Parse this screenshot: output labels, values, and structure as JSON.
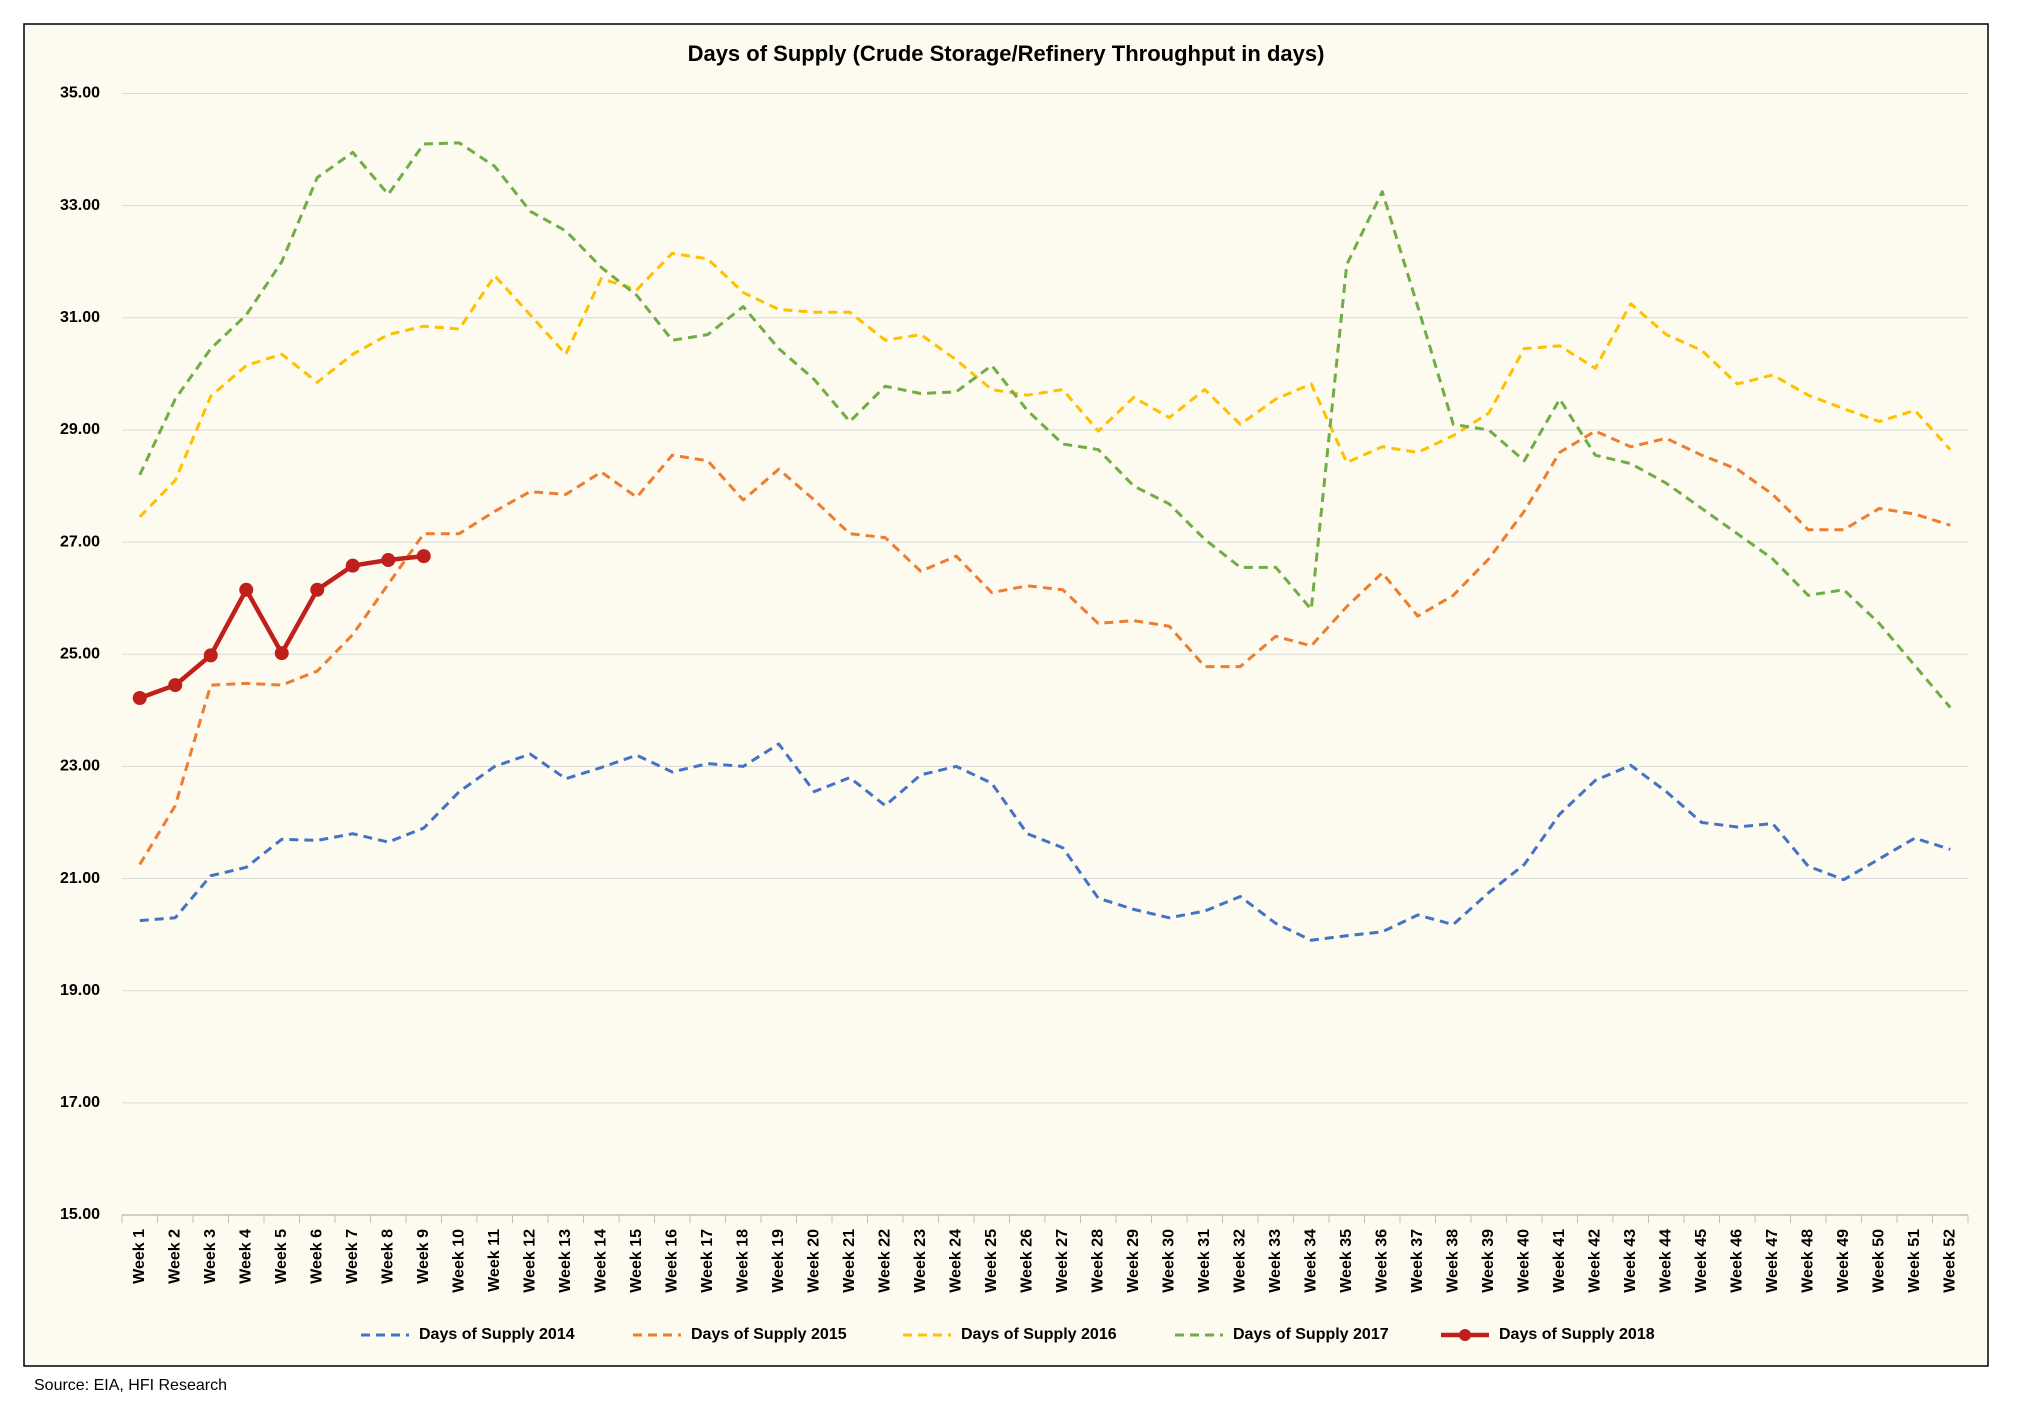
{
  "chart_data": {
    "type": "line",
    "title": "Days of Supply (Crude Storage/Refinery Throughput in days)",
    "source": "Source: EIA, HFI Research",
    "categories": [
      "Week 1",
      "Week 2",
      "Week 3",
      "Week 4",
      "Week 5",
      "Week 6",
      "Week 7",
      "Week 8",
      "Week 9",
      "Week 10",
      "Week 11",
      "Week 12",
      "Week 13",
      "Week 14",
      "Week 15",
      "Week 16",
      "Week 17",
      "Week 18",
      "Week 19",
      "Week 20",
      "Week 21",
      "Week 22",
      "Week 23",
      "Week 24",
      "Week 25",
      "Week 26",
      "Week 27",
      "Week 28",
      "Week 29",
      "Week 30",
      "Week 31",
      "Week 32",
      "Week 33",
      "Week 34",
      "Week 35",
      "Week 36",
      "Week 37",
      "Week 38",
      "Week 39",
      "Week 40",
      "Week 41",
      "Week 42",
      "Week 43",
      "Week 44",
      "Week 45",
      "Week 46",
      "Week 47",
      "Week 48",
      "Week 49",
      "Week 50",
      "Week 51",
      "Week 52"
    ],
    "ylim": [
      15,
      35
    ],
    "yticks": [
      {
        "value": 15,
        "label": "15.00"
      },
      {
        "value": 17,
        "label": "17.00"
      },
      {
        "value": 19,
        "label": "19.00"
      },
      {
        "value": 21,
        "label": "21.00"
      },
      {
        "value": 23,
        "label": "23.00"
      },
      {
        "value": 25,
        "label": "25.00"
      },
      {
        "value": 27,
        "label": "27.00"
      },
      {
        "value": 29,
        "label": "29.00"
      },
      {
        "value": 31,
        "label": "31.00"
      },
      {
        "value": 33,
        "label": "33.00"
      },
      {
        "value": 35,
        "label": "35.00"
      }
    ],
    "grid": true,
    "legend": "bottom",
    "series": [
      {
        "name": "Days of Supply 2014",
        "color": "#4472c4",
        "dashed": true,
        "values": [
          20.25,
          20.3,
          21.05,
          21.2,
          21.7,
          21.68,
          21.8,
          21.65,
          21.9,
          22.55,
          23.0,
          23.22,
          22.78,
          22.98,
          23.2,
          22.9,
          23.05,
          23.0,
          23.4,
          22.55,
          22.8,
          22.3,
          22.85,
          23.0,
          22.7,
          21.8,
          21.55,
          20.65,
          20.45,
          20.3,
          20.42,
          20.68,
          20.2,
          19.9,
          19.98,
          20.05,
          20.35,
          20.18,
          20.75,
          21.25,
          22.15,
          22.75,
          23.02,
          22.55,
          22.0,
          21.92,
          21.98,
          21.22,
          20.98,
          21.35,
          21.72,
          21.52
        ]
      },
      {
        "name": "Days of Supply 2015",
        "color": "#ed7d31",
        "dashed": true,
        "values": [
          21.25,
          22.3,
          24.45,
          24.48,
          24.45,
          24.7,
          25.35,
          26.25,
          27.15,
          27.15,
          27.55,
          27.9,
          27.85,
          28.25,
          27.8,
          28.55,
          28.45,
          27.75,
          28.3,
          27.75,
          27.15,
          27.08,
          26.48,
          26.75,
          26.1,
          26.22,
          26.15,
          25.55,
          25.6,
          25.5,
          24.78,
          24.78,
          25.32,
          25.15,
          25.85,
          26.45,
          25.68,
          26.05,
          26.7,
          27.55,
          28.6,
          28.98,
          28.7,
          28.85,
          28.55,
          28.3,
          27.85,
          27.22,
          27.22,
          27.6,
          27.5,
          27.3
        ]
      },
      {
        "name": "Days of Supply 2016",
        "color": "#ffc000",
        "dashed": true,
        "values": [
          27.45,
          28.1,
          29.6,
          30.15,
          30.35,
          29.85,
          30.35,
          30.7,
          30.85,
          30.8,
          31.75,
          31.05,
          30.35,
          31.7,
          31.5,
          32.15,
          32.05,
          31.45,
          31.15,
          31.1,
          31.1,
          30.6,
          30.7,
          30.25,
          29.72,
          29.62,
          29.72,
          28.98,
          29.58,
          29.22,
          29.72,
          29.1,
          29.55,
          29.82,
          28.42,
          28.7,
          28.6,
          28.9,
          29.3,
          30.45,
          30.5,
          30.1,
          31.25,
          30.7,
          30.42,
          29.82,
          29.98,
          29.62,
          29.38,
          29.15,
          29.35,
          28.65
        ]
      },
      {
        "name": "Days of Supply 2017",
        "color": "#70ad47",
        "dashed": true,
        "values": [
          28.2,
          29.55,
          30.45,
          31.05,
          32.0,
          33.5,
          33.95,
          33.2,
          34.1,
          34.12,
          33.7,
          32.9,
          32.55,
          31.9,
          31.4,
          30.6,
          30.7,
          31.2,
          30.45,
          29.9,
          29.15,
          29.78,
          29.65,
          29.68,
          30.15,
          29.35,
          28.75,
          28.65,
          28.0,
          27.68,
          27.05,
          26.55,
          26.55,
          25.8,
          31.95,
          33.25,
          31.2,
          29.1,
          29.0,
          28.45,
          29.55,
          28.55,
          28.4,
          28.05,
          27.6,
          27.15,
          26.7,
          26.05,
          26.15,
          25.55,
          24.8,
          24.05
        ]
      },
      {
        "name": "Days of Supply 2018",
        "color": "#c0201c",
        "dashed": false,
        "marker": true,
        "values": [
          24.22,
          24.45,
          24.98,
          26.15,
          25.02,
          26.15,
          26.58,
          26.68,
          26.75,
          null,
          null,
          null,
          null,
          null,
          null,
          null,
          null,
          null,
          null,
          null,
          null,
          null,
          null,
          null,
          null,
          null,
          null,
          null,
          null,
          null,
          null,
          null,
          null,
          null,
          null,
          null,
          null,
          null,
          null,
          null,
          null,
          null,
          null,
          null,
          null,
          null,
          null,
          null,
          null,
          null,
          null,
          null
        ]
      }
    ]
  }
}
